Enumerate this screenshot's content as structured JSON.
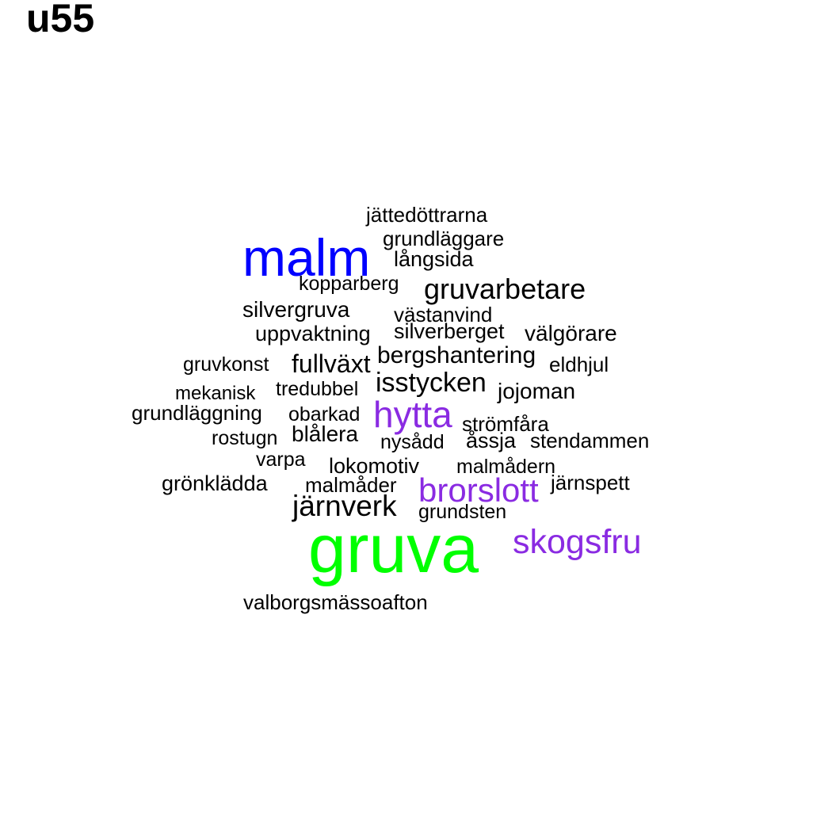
{
  "title": "u55",
  "colors": {
    "black": "#000000",
    "blue": "#0000ff",
    "green": "#00ff00",
    "purple": "#8a2be2"
  },
  "words": [
    {
      "text": "jättedöttrarna",
      "color": "black"
    },
    {
      "text": "grundläggare",
      "color": "black"
    },
    {
      "text": "malm",
      "color": "blue"
    },
    {
      "text": "långsida",
      "color": "black"
    },
    {
      "text": "kopparberg",
      "color": "black"
    },
    {
      "text": "gruvarbetare",
      "color": "black"
    },
    {
      "text": "silvergruva",
      "color": "black"
    },
    {
      "text": "västanvind",
      "color": "black"
    },
    {
      "text": "uppvaktning",
      "color": "black"
    },
    {
      "text": "silverberget",
      "color": "black"
    },
    {
      "text": "välgörare",
      "color": "black"
    },
    {
      "text": "bergshantering",
      "color": "black"
    },
    {
      "text": "gruvkonst",
      "color": "black"
    },
    {
      "text": "fullväxt",
      "color": "black"
    },
    {
      "text": "eldhjul",
      "color": "black"
    },
    {
      "text": "isstycken",
      "color": "black"
    },
    {
      "text": "mekanisk",
      "color": "black"
    },
    {
      "text": "tredubbel",
      "color": "black"
    },
    {
      "text": "jojoman",
      "color": "black"
    },
    {
      "text": "grundläggning",
      "color": "black"
    },
    {
      "text": "obarkad",
      "color": "black"
    },
    {
      "text": "hytta",
      "color": "purple"
    },
    {
      "text": "strömfåra",
      "color": "black"
    },
    {
      "text": "rostugn",
      "color": "black"
    },
    {
      "text": "blålera",
      "color": "black"
    },
    {
      "text": "nysådd",
      "color": "black"
    },
    {
      "text": "åssja",
      "color": "black"
    },
    {
      "text": "stendammen",
      "color": "black"
    },
    {
      "text": "varpa",
      "color": "black"
    },
    {
      "text": "lokomotiv",
      "color": "black"
    },
    {
      "text": "malmådern",
      "color": "black"
    },
    {
      "text": "grönklädda",
      "color": "black"
    },
    {
      "text": "malmåder",
      "color": "black"
    },
    {
      "text": "järnspett",
      "color": "black"
    },
    {
      "text": "brorslott",
      "color": "purple"
    },
    {
      "text": "järnverk",
      "color": "black"
    },
    {
      "text": "grundsten",
      "color": "black"
    },
    {
      "text": "gruva",
      "color": "green"
    },
    {
      "text": "skogsfru",
      "color": "purple"
    },
    {
      "text": "valborgsmässoafton",
      "color": "black"
    }
  ]
}
